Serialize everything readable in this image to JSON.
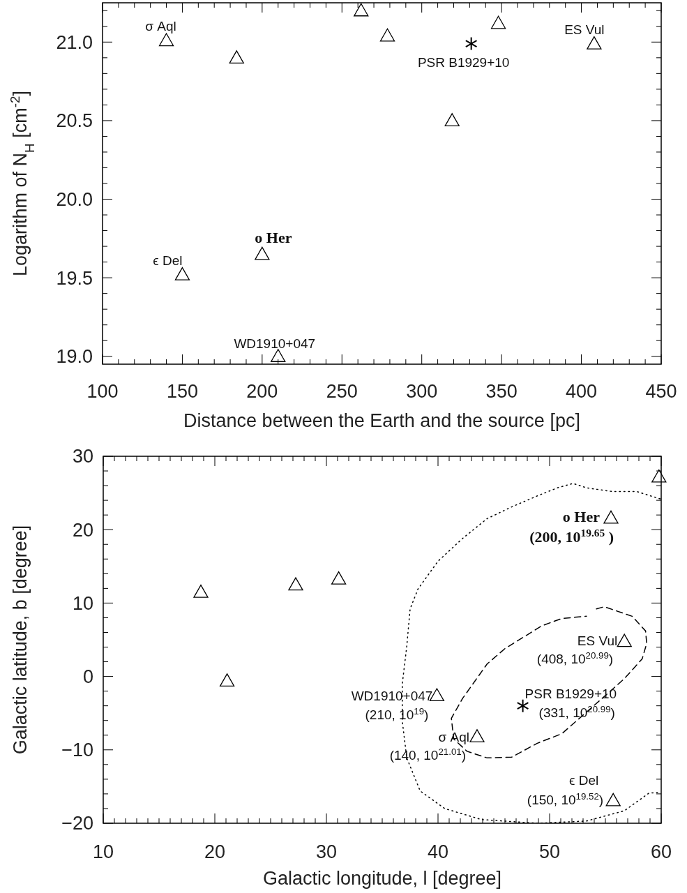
{
  "chart_data": [
    {
      "type": "scatter",
      "xlabel": "Distance between the Earth and the source [pc]",
      "ylabel": "Logarithm of N$_{H}$ [cm$^{-2}$]",
      "xlim": [
        100,
        450
      ],
      "ylim": [
        18.95,
        21.25
      ],
      "xticks": [
        100,
        {
          "value": 110,
          "label": null
        },
        {
          "value": 120,
          "label": null
        },
        {
          "value": 130,
          "label": null
        },
        {
          "value": 140,
          "label": null
        },
        150,
        {
          "value": 160,
          "label": null
        },
        {
          "value": 170,
          "label": null
        },
        {
          "value": 180,
          "label": null
        },
        {
          "value": 190,
          "label": null
        },
        200,
        {
          "value": 210,
          "label": null
        },
        {
          "value": 220,
          "label": null
        },
        {
          "value": 230,
          "label": null
        },
        {
          "value": 240,
          "label": null
        },
        250,
        {
          "value": 260,
          "label": null
        },
        {
          "value": 270,
          "label": null
        },
        {
          "value": 280,
          "label": null
        },
        {
          "value": 290,
          "label": null
        },
        300,
        {
          "value": 310,
          "label": null
        },
        {
          "value": 320,
          "label": null
        },
        {
          "value": 330,
          "label": null
        },
        {
          "value": 340,
          "label": null
        },
        350,
        {
          "value": 360,
          "label": null
        },
        {
          "value": 370,
          "label": null
        },
        {
          "value": 380,
          "label": null
        },
        {
          "value": 390,
          "label": null
        },
        400,
        {
          "value": 410,
          "label": null
        },
        {
          "value": 420,
          "label": null
        },
        {
          "value": 430,
          "label": null
        },
        {
          "value": 440,
          "label": null
        },
        450
      ],
      "yticks": [
        {
          "value": 19,
          "label": "19.0"
        },
        {
          "value": 19.1,
          "label": null
        },
        {
          "value": 19.2,
          "label": null
        },
        {
          "value": 19.3,
          "label": null
        },
        {
          "value": 19.4,
          "label": null
        },
        19.5,
        {
          "value": 19.6,
          "label": null
        },
        {
          "value": 19.7,
          "label": null
        },
        {
          "value": 19.8,
          "label": null
        },
        {
          "value": 19.9,
          "label": null
        },
        {
          "value": 20,
          "label": "20.0"
        },
        {
          "value": 20.1,
          "label": null
        },
        {
          "value": 20.2,
          "label": null
        },
        {
          "value": 20.3,
          "label": null
        },
        {
          "value": 20.4,
          "label": null
        },
        20.5,
        {
          "value": 20.6,
          "label": null
        },
        {
          "value": 20.7,
          "label": null
        },
        {
          "value": 20.8,
          "label": null
        },
        {
          "value": 20.9,
          "label": null
        },
        {
          "value": 21,
          "label": "21.0"
        },
        {
          "value": 21.1,
          "label": null
        },
        {
          "value": 21.2,
          "label": null
        }
      ],
      "series": [
        {
          "type": "scatter",
          "marker": "triangle",
          "color": "#000000",
          "x": [
            140,
            184,
            262,
            278.5,
            319,
            348,
            408,
            200,
            150,
            210
          ],
          "values": [
            21.01,
            20.9,
            21.2,
            21.04,
            20.5,
            21.12,
            20.99,
            19.65,
            19.52,
            19.0
          ]
        },
        {
          "type": "scatter",
          "marker": "cross",
          "color": "#000000",
          "x": [
            331
          ],
          "values": [
            20.99
          ]
        }
      ],
      "annotations": [
        {
          "text": "σ Aql",
          "x": 140,
          "y": 21.01
        },
        {
          "text": "o Her",
          "x": 200,
          "y": 19.65
        },
        {
          "text": "ϵ Del",
          "x": 150,
          "y": 19.52
        },
        {
          "text": "WD1910+047",
          "x": 210,
          "y": 19.0
        },
        {
          "text": "PSR B1929+10",
          "x": 331,
          "y": 20.99
        },
        {
          "text": "ES Vul",
          "x": 408,
          "y": 20.99
        }
      ]
    },
    {
      "type": "scatter",
      "xlabel": "Galactic longitude, l [degree]",
      "ylabel": "Galactic latitude, b [degree]",
      "xlim": [
        10,
        60
      ],
      "ylim": [
        -20,
        30
      ],
      "xticks": [
        10,
        {
          "value": 11,
          "label": null
        },
        {
          "value": 12,
          "label": null
        },
        {
          "value": 13,
          "label": null
        },
        {
          "value": 14,
          "label": null
        },
        {
          "value": 15,
          "label": null
        },
        {
          "value": 16,
          "label": null
        },
        {
          "value": 17,
          "label": null
        },
        {
          "value": 18,
          "label": null
        },
        {
          "value": 19,
          "label": null
        },
        20,
        {
          "value": 21,
          "label": null
        },
        {
          "value": 22,
          "label": null
        },
        {
          "value": 23,
          "label": null
        },
        {
          "value": 24,
          "label": null
        },
        {
          "value": 25,
          "label": null
        },
        {
          "value": 26,
          "label": null
        },
        {
          "value": 27,
          "label": null
        },
        {
          "value": 28,
          "label": null
        },
        {
          "value": 29,
          "label": null
        },
        30,
        {
          "value": 31,
          "label": null
        },
        {
          "value": 32,
          "label": null
        },
        {
          "value": 33,
          "label": null
        },
        {
          "value": 34,
          "label": null
        },
        {
          "value": 35,
          "label": null
        },
        {
          "value": 36,
          "label": null
        },
        {
          "value": 37,
          "label": null
        },
        {
          "value": 38,
          "label": null
        },
        {
          "value": 39,
          "label": null
        },
        40,
        {
          "value": 41,
          "label": null
        },
        {
          "value": 42,
          "label": null
        },
        {
          "value": 43,
          "label": null
        },
        {
          "value": 44,
          "label": null
        },
        {
          "value": 45,
          "label": null
        },
        {
          "value": 46,
          "label": null
        },
        {
          "value": 47,
          "label": null
        },
        {
          "value": 48,
          "label": null
        },
        {
          "value": 49,
          "label": null
        },
        50,
        {
          "value": 51,
          "label": null
        },
        {
          "value": 52,
          "label": null
        },
        {
          "value": 53,
          "label": null
        },
        {
          "value": 54,
          "label": null
        },
        {
          "value": 55,
          "label": null
        },
        {
          "value": 56,
          "label": null
        },
        {
          "value": 57,
          "label": null
        },
        {
          "value": 58,
          "label": null
        },
        {
          "value": 59,
          "label": null
        },
        60
      ],
      "yticks": [
        {
          "value": -20,
          "label": "−20"
        },
        {
          "value": -18,
          "label": null
        },
        {
          "value": -16,
          "label": null
        },
        {
          "value": -14,
          "label": null
        },
        {
          "value": -12,
          "label": null
        },
        {
          "value": -10,
          "label": "−10"
        },
        {
          "value": -8,
          "label": null
        },
        {
          "value": -6,
          "label": null
        },
        {
          "value": -4,
          "label": null
        },
        {
          "value": -2,
          "label": null
        },
        0,
        {
          "value": 2,
          "label": null
        },
        {
          "value": 4,
          "label": null
        },
        {
          "value": 6,
          "label": null
        },
        {
          "value": 8,
          "label": null
        },
        10,
        {
          "value": 12,
          "label": null
        },
        {
          "value": 14,
          "label": null
        },
        {
          "value": 16,
          "label": null
        },
        {
          "value": 18,
          "label": null
        },
        20,
        {
          "value": 22,
          "label": null
        },
        {
          "value": 24,
          "label": null
        },
        {
          "value": 26,
          "label": null
        },
        {
          "value": 28,
          "label": null
        },
        30
      ],
      "series": [
        {
          "type": "line",
          "line_style": "dotted",
          "color": "#000000",
          "x": [
            59.9,
            57.8,
            55.6,
            53.3,
            52.1,
            50.7,
            48.9,
            46.6,
            44.4,
            42.2,
            40.0,
            38.2,
            37.5,
            37.2,
            36.8,
            36.8,
            37.2,
            38.4,
            40.6,
            43.9,
            48.9,
            53.3,
            56.7,
            58.9,
            59.8
          ],
          "values": [
            24.2,
            25.2,
            25.2,
            25.7,
            26.3,
            25.7,
            24.6,
            23.1,
            21.5,
            18.8,
            15.7,
            11.9,
            9.2,
            4.1,
            -1.0,
            -6.1,
            -11.1,
            -15.6,
            -18.0,
            -19.5,
            -20.0,
            -19.7,
            -18.3,
            -15.9,
            -15.8
          ]
        },
        {
          "type": "line",
          "line_style": "dashed",
          "color": "#000000",
          "x": [
            54.2,
            54.9,
            57.4,
            58.6,
            58.7,
            58.3,
            56.7,
            54.7,
            52.9,
            51.1,
            48.9,
            46.6,
            44.4,
            42.6,
            41.4,
            41.2,
            42.2,
            44.4,
            46.0,
            49.3,
            51.1,
            53.3
          ],
          "values": [
            9.2,
            9.5,
            8.2,
            6.2,
            4.5,
            2.4,
            -0.3,
            -3.0,
            -5.4,
            -7.8,
            -9.1,
            -11.0,
            -11.1,
            -10.2,
            -8.5,
            -5.7,
            -3.0,
            1.7,
            3.8,
            6.9,
            7.9,
            8.2
          ]
        },
        {
          "type": "scatter",
          "marker": "triangle",
          "color": "#000000",
          "x": [
            18.75,
            21.1,
            27.25,
            31.1,
            59.8,
            55.5,
            56.7,
            39.9,
            43.5,
            55.7
          ],
          "values": [
            11.5,
            -0.6,
            12.5,
            13.3,
            27.2,
            21.6,
            4.8,
            -2.6,
            -8.2,
            -16.9
          ]
        },
        {
          "type": "scatter",
          "marker": "cross",
          "color": "#000000",
          "x": [
            47.6
          ],
          "values": [
            -4.0
          ]
        }
      ],
      "annotations": [
        {
          "text": "o Her\n(200, 10$^{19.65}$ )",
          "x": 55.5,
          "y": 21.6
        },
        {
          "text": "ES Vul\n(408, 10$^{20.99}$)",
          "x": 56.7,
          "y": 4.8
        },
        {
          "text": "PSR B1929+10\n(331, 10$^{20.99}$)",
          "x": 47.6,
          "y": -4.0
        },
        {
          "text": "WD1910+047\n(210, 10$^{19}$)",
          "x": 39.9,
          "y": -2.6
        },
        {
          "text": "σ Aql\n(140, 10$^{21.01}$)",
          "x": 43.5,
          "y": -8.2
        },
        {
          "text": "ϵ Del\n(150, 10$^{19.52}$)",
          "x": 55.7,
          "y": -16.9
        }
      ]
    }
  ]
}
